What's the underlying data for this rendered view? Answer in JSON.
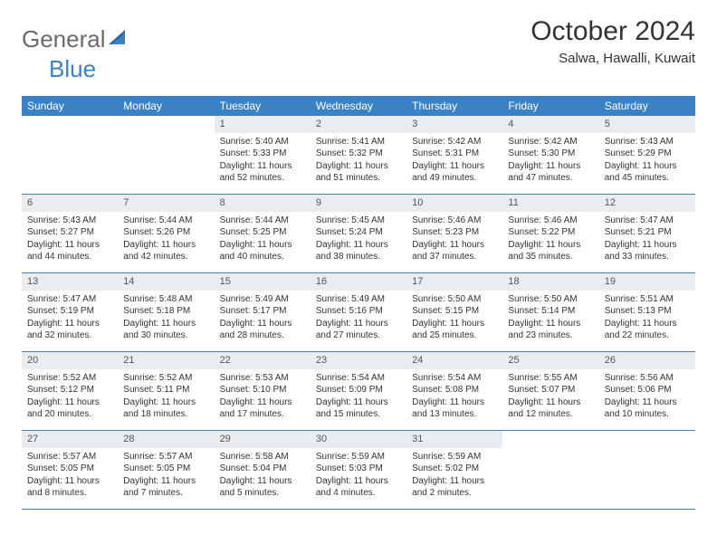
{
  "logo": {
    "word1": "General",
    "word2": "Blue"
  },
  "title": "October 2024",
  "location": "Salwa, Hawalli, Kuwait",
  "colors": {
    "header_bg": "#3b82c4",
    "daynum_bg": "#e9edf0",
    "text": "#333333",
    "logo_gray": "#6b6b6b",
    "logo_blue": "#3b82c4"
  },
  "day_names": [
    "Sunday",
    "Monday",
    "Tuesday",
    "Wednesday",
    "Thursday",
    "Friday",
    "Saturday"
  ],
  "weeks": [
    [
      null,
      null,
      {
        "n": "1",
        "sr": "Sunrise: 5:40 AM",
        "ss": "Sunset: 5:33 PM",
        "d1": "Daylight: 11 hours",
        "d2": "and 52 minutes."
      },
      {
        "n": "2",
        "sr": "Sunrise: 5:41 AM",
        "ss": "Sunset: 5:32 PM",
        "d1": "Daylight: 11 hours",
        "d2": "and 51 minutes."
      },
      {
        "n": "3",
        "sr": "Sunrise: 5:42 AM",
        "ss": "Sunset: 5:31 PM",
        "d1": "Daylight: 11 hours",
        "d2": "and 49 minutes."
      },
      {
        "n": "4",
        "sr": "Sunrise: 5:42 AM",
        "ss": "Sunset: 5:30 PM",
        "d1": "Daylight: 11 hours",
        "d2": "and 47 minutes."
      },
      {
        "n": "5",
        "sr": "Sunrise: 5:43 AM",
        "ss": "Sunset: 5:29 PM",
        "d1": "Daylight: 11 hours",
        "d2": "and 45 minutes."
      }
    ],
    [
      {
        "n": "6",
        "sr": "Sunrise: 5:43 AM",
        "ss": "Sunset: 5:27 PM",
        "d1": "Daylight: 11 hours",
        "d2": "and 44 minutes."
      },
      {
        "n": "7",
        "sr": "Sunrise: 5:44 AM",
        "ss": "Sunset: 5:26 PM",
        "d1": "Daylight: 11 hours",
        "d2": "and 42 minutes."
      },
      {
        "n": "8",
        "sr": "Sunrise: 5:44 AM",
        "ss": "Sunset: 5:25 PM",
        "d1": "Daylight: 11 hours",
        "d2": "and 40 minutes."
      },
      {
        "n": "9",
        "sr": "Sunrise: 5:45 AM",
        "ss": "Sunset: 5:24 PM",
        "d1": "Daylight: 11 hours",
        "d2": "and 38 minutes."
      },
      {
        "n": "10",
        "sr": "Sunrise: 5:46 AM",
        "ss": "Sunset: 5:23 PM",
        "d1": "Daylight: 11 hours",
        "d2": "and 37 minutes."
      },
      {
        "n": "11",
        "sr": "Sunrise: 5:46 AM",
        "ss": "Sunset: 5:22 PM",
        "d1": "Daylight: 11 hours",
        "d2": "and 35 minutes."
      },
      {
        "n": "12",
        "sr": "Sunrise: 5:47 AM",
        "ss": "Sunset: 5:21 PM",
        "d1": "Daylight: 11 hours",
        "d2": "and 33 minutes."
      }
    ],
    [
      {
        "n": "13",
        "sr": "Sunrise: 5:47 AM",
        "ss": "Sunset: 5:19 PM",
        "d1": "Daylight: 11 hours",
        "d2": "and 32 minutes."
      },
      {
        "n": "14",
        "sr": "Sunrise: 5:48 AM",
        "ss": "Sunset: 5:18 PM",
        "d1": "Daylight: 11 hours",
        "d2": "and 30 minutes."
      },
      {
        "n": "15",
        "sr": "Sunrise: 5:49 AM",
        "ss": "Sunset: 5:17 PM",
        "d1": "Daylight: 11 hours",
        "d2": "and 28 minutes."
      },
      {
        "n": "16",
        "sr": "Sunrise: 5:49 AM",
        "ss": "Sunset: 5:16 PM",
        "d1": "Daylight: 11 hours",
        "d2": "and 27 minutes."
      },
      {
        "n": "17",
        "sr": "Sunrise: 5:50 AM",
        "ss": "Sunset: 5:15 PM",
        "d1": "Daylight: 11 hours",
        "d2": "and 25 minutes."
      },
      {
        "n": "18",
        "sr": "Sunrise: 5:50 AM",
        "ss": "Sunset: 5:14 PM",
        "d1": "Daylight: 11 hours",
        "d2": "and 23 minutes."
      },
      {
        "n": "19",
        "sr": "Sunrise: 5:51 AM",
        "ss": "Sunset: 5:13 PM",
        "d1": "Daylight: 11 hours",
        "d2": "and 22 minutes."
      }
    ],
    [
      {
        "n": "20",
        "sr": "Sunrise: 5:52 AM",
        "ss": "Sunset: 5:12 PM",
        "d1": "Daylight: 11 hours",
        "d2": "and 20 minutes."
      },
      {
        "n": "21",
        "sr": "Sunrise: 5:52 AM",
        "ss": "Sunset: 5:11 PM",
        "d1": "Daylight: 11 hours",
        "d2": "and 18 minutes."
      },
      {
        "n": "22",
        "sr": "Sunrise: 5:53 AM",
        "ss": "Sunset: 5:10 PM",
        "d1": "Daylight: 11 hours",
        "d2": "and 17 minutes."
      },
      {
        "n": "23",
        "sr": "Sunrise: 5:54 AM",
        "ss": "Sunset: 5:09 PM",
        "d1": "Daylight: 11 hours",
        "d2": "and 15 minutes."
      },
      {
        "n": "24",
        "sr": "Sunrise: 5:54 AM",
        "ss": "Sunset: 5:08 PM",
        "d1": "Daylight: 11 hours",
        "d2": "and 13 minutes."
      },
      {
        "n": "25",
        "sr": "Sunrise: 5:55 AM",
        "ss": "Sunset: 5:07 PM",
        "d1": "Daylight: 11 hours",
        "d2": "and 12 minutes."
      },
      {
        "n": "26",
        "sr": "Sunrise: 5:56 AM",
        "ss": "Sunset: 5:06 PM",
        "d1": "Daylight: 11 hours",
        "d2": "and 10 minutes."
      }
    ],
    [
      {
        "n": "27",
        "sr": "Sunrise: 5:57 AM",
        "ss": "Sunset: 5:05 PM",
        "d1": "Daylight: 11 hours",
        "d2": "and 8 minutes."
      },
      {
        "n": "28",
        "sr": "Sunrise: 5:57 AM",
        "ss": "Sunset: 5:05 PM",
        "d1": "Daylight: 11 hours",
        "d2": "and 7 minutes."
      },
      {
        "n": "29",
        "sr": "Sunrise: 5:58 AM",
        "ss": "Sunset: 5:04 PM",
        "d1": "Daylight: 11 hours",
        "d2": "and 5 minutes."
      },
      {
        "n": "30",
        "sr": "Sunrise: 5:59 AM",
        "ss": "Sunset: 5:03 PM",
        "d1": "Daylight: 11 hours",
        "d2": "and 4 minutes."
      },
      {
        "n": "31",
        "sr": "Sunrise: 5:59 AM",
        "ss": "Sunset: 5:02 PM",
        "d1": "Daylight: 11 hours",
        "d2": "and 2 minutes."
      },
      null,
      null
    ]
  ]
}
